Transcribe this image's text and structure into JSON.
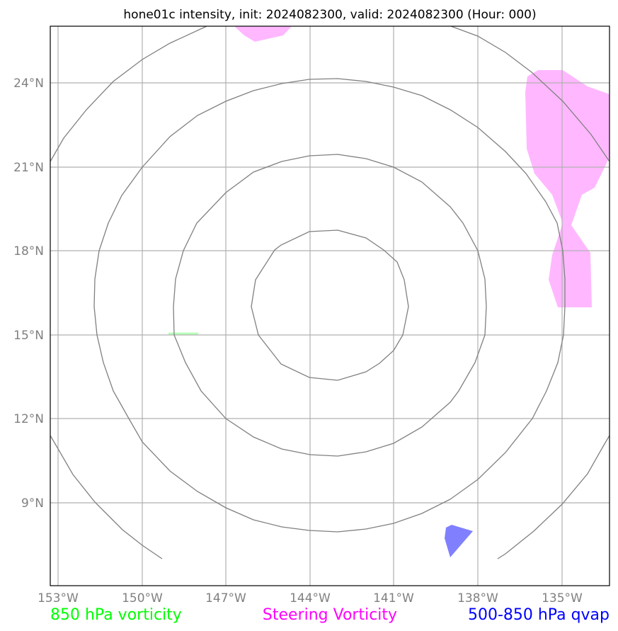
{
  "title": "hone01c intensity, init: 2024082300, valid: 2024082300 (Hour: 000)",
  "lat_labels": [
    "24°N",
    "21°N",
    "18°N",
    "15°N",
    "12°N",
    "9°N"
  ],
  "lon_labels": [
    "153°W",
    "150°W",
    "147°W",
    "144°W",
    "141°W",
    "138°W",
    "135°W"
  ],
  "legend": {
    "vorticity_850": "850 hPa vorticity",
    "steering": "Steering Vorticity",
    "qvap": "500-850 hPa qvap"
  },
  "colors": {
    "vorticity_850": "#00ff00",
    "steering": "#ff00ff",
    "steering_fill": "#ffb8ff",
    "qvap": "#0000ff",
    "qvap_fill": "#8080ff",
    "grid": "#b0b0b0",
    "rings": "#808080"
  },
  "map_extent": {
    "lon": [
      -153.25,
      -133.5
    ],
    "lat": [
      6.5,
      26.5
    ]
  },
  "storm_center": {
    "lon": -143.0,
    "lat": 16.0
  }
}
